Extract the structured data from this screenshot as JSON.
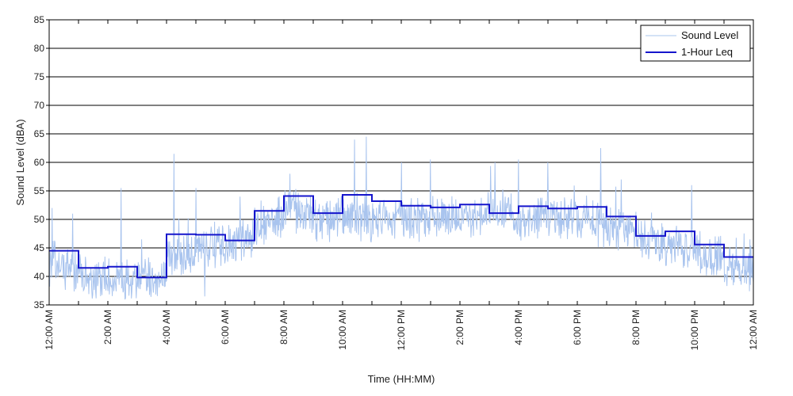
{
  "chart_data": {
    "type": "line",
    "title": "",
    "xlabel": "Time (HH:MM)",
    "ylabel": "Sound Level (dBA)",
    "ylim": [
      35,
      85
    ],
    "yticks": [
      35,
      40,
      45,
      50,
      55,
      60,
      65,
      70,
      75,
      80,
      85
    ],
    "xlim_hours": [
      0,
      24
    ],
    "xticks": [
      {
        "hour": 0,
        "label": "12:00 AM"
      },
      {
        "hour": 2,
        "label": "2:00 AM"
      },
      {
        "hour": 4,
        "label": "4:00 AM"
      },
      {
        "hour": 6,
        "label": "6:00 AM"
      },
      {
        "hour": 8,
        "label": "8:00 AM"
      },
      {
        "hour": 10,
        "label": "10:00 AM"
      },
      {
        "hour": 12,
        "label": "12:00 PM"
      },
      {
        "hour": 14,
        "label": "2:00 PM"
      },
      {
        "hour": 16,
        "label": "4:00 PM"
      },
      {
        "hour": 18,
        "label": "6:00 PM"
      },
      {
        "hour": 20,
        "label": "8:00 PM"
      },
      {
        "hour": 22,
        "label": "10:00 PM"
      },
      {
        "hour": 24,
        "label": "12:00 AM"
      }
    ],
    "grid": "horizontal",
    "legend_position": "top-right",
    "series": [
      {
        "name": "Sound Level",
        "color": "#a9c4ee",
        "hourly_mean": [
          42.5,
          40.0,
          39.5,
          38.5,
          43.0,
          45.5,
          44.5,
          49.0,
          52.0,
          50.0,
          50.5,
          50.0,
          50.0,
          50.0,
          50.5,
          50.5,
          50.0,
          50.0,
          50.0,
          48.5,
          46.5,
          46.0,
          44.5,
          41.5
        ],
        "spikes": [
          {
            "hour": 0.1,
            "value": 52
          },
          {
            "hour": 0.8,
            "value": 51
          },
          {
            "hour": 2.45,
            "value": 55.5
          },
          {
            "hour": 4.25,
            "value": 61.5
          },
          {
            "hour": 5.0,
            "value": 55.5
          },
          {
            "hour": 5.3,
            "value": 36.5
          },
          {
            "hour": 6.5,
            "value": 54
          },
          {
            "hour": 8.2,
            "value": 58
          },
          {
            "hour": 10.4,
            "value": 64
          },
          {
            "hour": 10.8,
            "value": 64.5
          },
          {
            "hour": 12.0,
            "value": 60
          },
          {
            "hour": 13.0,
            "value": 60.5
          },
          {
            "hour": 15.2,
            "value": 60
          },
          {
            "hour": 16.0,
            "value": 60.5
          },
          {
            "hour": 17.0,
            "value": 60
          },
          {
            "hour": 18.8,
            "value": 62.5
          },
          {
            "hour": 19.5,
            "value": 57
          },
          {
            "hour": 21.9,
            "value": 56
          },
          {
            "hour": 23.9,
            "value": 38.5
          }
        ]
      },
      {
        "name": "1-Hour Leq",
        "color": "#1515cc",
        "hours": [
          0,
          1,
          2,
          3,
          4,
          5,
          6,
          7,
          8,
          9,
          10,
          11,
          12,
          13,
          14,
          15,
          16,
          17,
          18,
          19,
          20,
          21,
          22,
          23
        ],
        "values": [
          44.5,
          41.5,
          41.7,
          39.8,
          47.4,
          47.3,
          46.3,
          51.5,
          54.1,
          51.1,
          54.3,
          53.2,
          52.4,
          52.1,
          52.6,
          51.1,
          52.3,
          51.9,
          52.2,
          50.5,
          47.1,
          47.9,
          45.6,
          43.4
        ]
      }
    ]
  }
}
